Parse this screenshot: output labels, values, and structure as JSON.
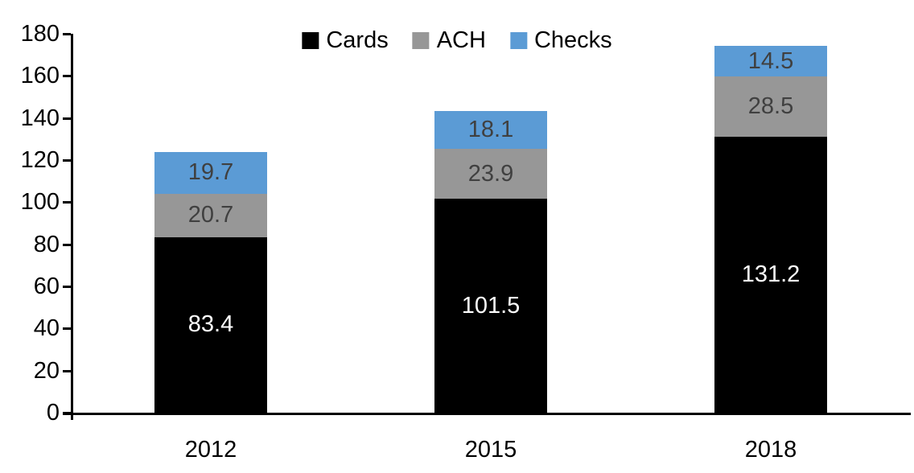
{
  "chart_data": {
    "type": "bar",
    "stacked": true,
    "title": "",
    "categories": [
      "2012",
      "2015",
      "2018"
    ],
    "series": [
      {
        "name": "Cards",
        "color": "#000000",
        "label_color": "#FFFFFF",
        "values": [
          83.4,
          101.5,
          131.2
        ]
      },
      {
        "name": "ACH",
        "color": "#979797",
        "label_color": "#404040",
        "values": [
          20.7,
          23.9,
          28.5
        ]
      },
      {
        "name": "Checks",
        "color": "#5B9BD5",
        "label_color": "#404040",
        "values": [
          19.7,
          18.1,
          14.5
        ]
      }
    ],
    "totals": [
      123.8,
      143.5,
      174.2
    ],
    "ylim": [
      0,
      180
    ],
    "yticks": [
      0,
      20,
      40,
      60,
      80,
      100,
      120,
      140,
      160,
      180
    ],
    "grid": false,
    "legend_position": "top-center",
    "axis_color": "#000000",
    "background_color": "#FFFFFF"
  }
}
